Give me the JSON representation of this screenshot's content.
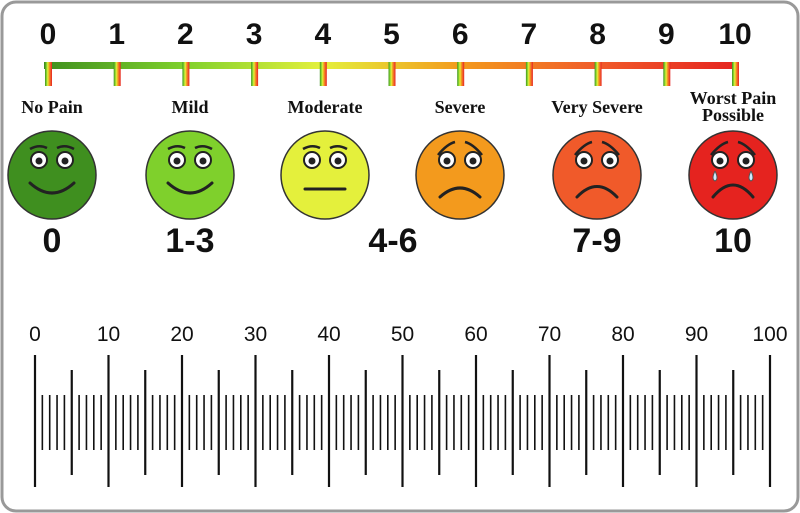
{
  "scale_numbers": [
    0,
    1,
    2,
    3,
    4,
    5,
    6,
    7,
    8,
    9,
    10
  ],
  "levels": [
    {
      "label": "No Pain",
      "color": "#3f8f1f"
    },
    {
      "label": "Mild",
      "color": "#7fd02c"
    },
    {
      "label": "Moderate",
      "color": "#e4f03c"
    },
    {
      "label": "Severe",
      "color": "#f39a1d"
    },
    {
      "label": "Very Severe",
      "color": "#f05a2a"
    },
    {
      "label": "Worst Pain Possible",
      "color": "#e5231f"
    }
  ],
  "ranges": [
    "0",
    "1-3",
    "4-6",
    "7-9",
    "10"
  ],
  "ruler_labels": [
    0,
    10,
    20,
    30,
    40,
    50,
    60,
    70,
    80,
    90,
    100
  ]
}
